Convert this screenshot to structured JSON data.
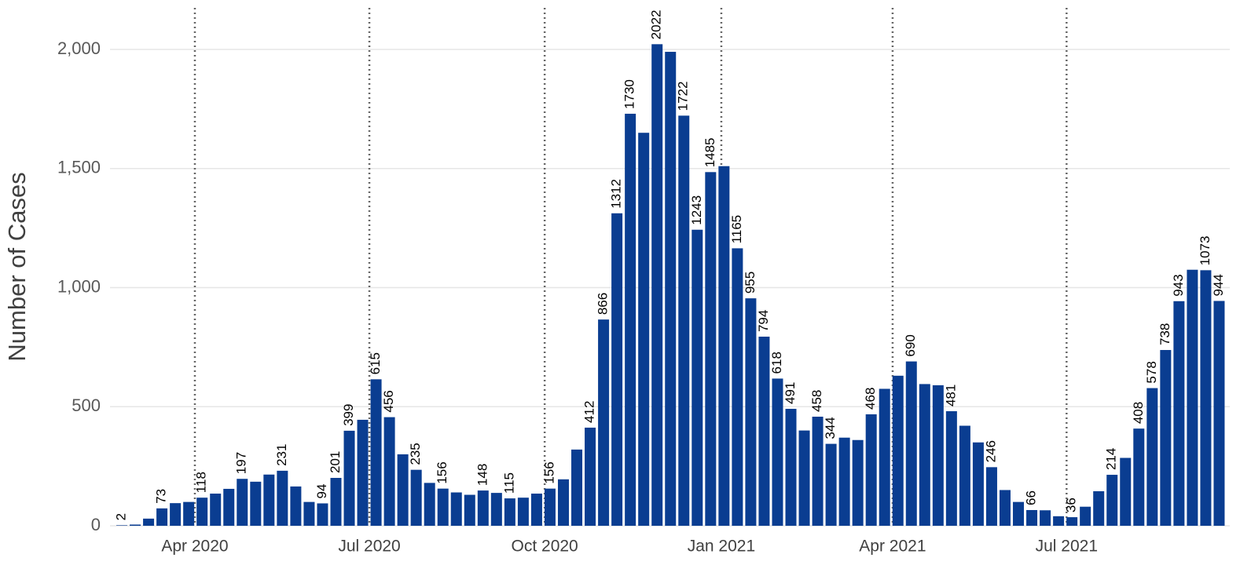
{
  "chart_data": {
    "type": "bar",
    "y_axis_label": "Number of Cases",
    "color": "#0a3d91",
    "categories": [
      null,
      null,
      null,
      null,
      null,
      null,
      null,
      null,
      null,
      null,
      null,
      null,
      null,
      null,
      null,
      null,
      null,
      null,
      null,
      null,
      null,
      null,
      null,
      null,
      null,
      null,
      null,
      null,
      null,
      null,
      null,
      null,
      null,
      null,
      null,
      null,
      null,
      null,
      null,
      null,
      null,
      null,
      null,
      null,
      null,
      null,
      null,
      null,
      null,
      null,
      null,
      null,
      null,
      null,
      null,
      null,
      null,
      null,
      null,
      null,
      null,
      null,
      null,
      null,
      null,
      null,
      null,
      null,
      null,
      null,
      null,
      null,
      null,
      null,
      null,
      null,
      null,
      null,
      null,
      null,
      null,
      null,
      null
    ],
    "values": [
      2,
      5,
      30,
      73,
      95,
      100,
      118,
      135,
      155,
      197,
      185,
      215,
      231,
      165,
      100,
      94,
      201,
      399,
      445,
      615,
      456,
      300,
      235,
      180,
      156,
      140,
      130,
      148,
      138,
      115,
      118,
      135,
      156,
      195,
      320,
      412,
      866,
      1312,
      1730,
      1650,
      2022,
      1990,
      1722,
      1243,
      1485,
      1510,
      1165,
      955,
      794,
      618,
      491,
      400,
      458,
      344,
      370,
      360,
      468,
      575,
      630,
      690,
      595,
      590,
      481,
      420,
      350,
      246,
      150,
      100,
      66,
      65,
      40,
      36,
      80,
      145,
      214,
      285,
      408,
      578,
      738,
      943,
      1075,
      1073,
      944
    ],
    "value_labels": [
      "2",
      null,
      null,
      "73",
      null,
      null,
      "118",
      null,
      null,
      "197",
      null,
      null,
      "231",
      null,
      null,
      "94",
      "201",
      "399",
      null,
      "615",
      "456",
      null,
      "235",
      null,
      "156",
      null,
      null,
      "148",
      null,
      "115",
      null,
      null,
      "156",
      null,
      null,
      "412",
      "866",
      "1312",
      "1730",
      null,
      "2022",
      null,
      "1722",
      "1243",
      "1485",
      null,
      "1165",
      "955",
      "794",
      "618",
      "491",
      null,
      "458",
      "344",
      null,
      null,
      "468",
      null,
      null,
      "690",
      null,
      null,
      "481",
      null,
      null,
      "246",
      null,
      null,
      "66",
      null,
      null,
      "36",
      null,
      null,
      "214",
      null,
      "408",
      "578",
      "738",
      "943",
      null,
      "1073",
      "944"
    ],
    "ylim": [
      0,
      2200
    ],
    "yticks": [
      0,
      {
        "value": 500,
        "label": "500"
      },
      {
        "value": 1000,
        "label": "1,000"
      },
      {
        "value": 1500,
        "label": "1,500"
      },
      {
        "value": 2000,
        "label": "2,000"
      }
    ],
    "xticks": [
      {
        "value": 5.46,
        "label": "Apr 2020"
      },
      {
        "value": 18.5,
        "label": "Jul 2020"
      },
      {
        "value": 31.6,
        "label": "Oct 2020"
      },
      {
        "value": 44.8,
        "label": "Jan 2021"
      },
      {
        "value": 57.6,
        "label": "Apr 2021"
      },
      {
        "value": 70.6,
        "label": "Jul 2021"
      }
    ],
    "grid": true
  }
}
